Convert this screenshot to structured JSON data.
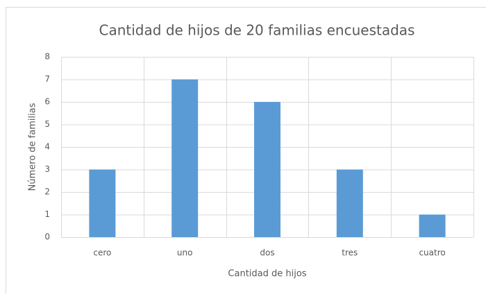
{
  "chart_data": {
    "type": "bar",
    "title": "Cantidad de hijos de 20 familias encuestadas",
    "x_label": "Cantidad de hijos",
    "y_label": "Número de familias",
    "categories": [
      "cero",
      "uno",
      "dos",
      "tres",
      "cuatro"
    ],
    "values": [
      3,
      7,
      6,
      3,
      1
    ],
    "color": "#5b9bd5",
    "ylim": [
      0,
      8
    ],
    "yticks": [
      0,
      1,
      2,
      3,
      4,
      5,
      6,
      7,
      8
    ],
    "grid": true
  }
}
